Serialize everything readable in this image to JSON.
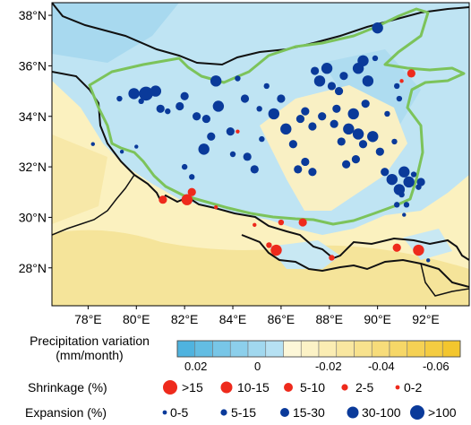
{
  "map": {
    "lat_labels": [
      "38°N",
      "36°N",
      "34°N",
      "32°N",
      "30°N",
      "28°N"
    ],
    "lon_labels": [
      "78°E",
      "80°E",
      "82°E",
      "84°E",
      "86°E",
      "88°E",
      "90°E",
      "92°E"
    ],
    "lat_range": [
      26.5,
      38.5
    ],
    "lon_range": [
      76.5,
      93.8
    ],
    "colors": {
      "blue_field": "#bfe4f3",
      "blue_deep": "#9fd3ec",
      "yellow_field": "#fbf1bf",
      "yellow_deep": "#f5e49a",
      "border_line": "#111111",
      "plateau_outline": "#7cc35a",
      "expansion_dot": "#0a3a9a",
      "shrinkage_dot": "#ee2a1c"
    },
    "lakes": {
      "expansion": [
        [
          78.2,
          32.9,
          1
        ],
        [
          79.9,
          34.9,
          4
        ],
        [
          80.2,
          34.6,
          2
        ],
        [
          80.4,
          34.9,
          5
        ],
        [
          80.8,
          35.0,
          4
        ],
        [
          81.0,
          34.3,
          3
        ],
        [
          81.3,
          34.2,
          2
        ],
        [
          81.8,
          34.4,
          3
        ],
        [
          82.0,
          34.8,
          3
        ],
        [
          82.5,
          34.0,
          3
        ],
        [
          82.9,
          33.9,
          3
        ],
        [
          83.3,
          35.4,
          4
        ],
        [
          83.4,
          34.4,
          4
        ],
        [
          83.1,
          33.2,
          3
        ],
        [
          82.8,
          32.7,
          4
        ],
        [
          82.0,
          32.0,
          2
        ],
        [
          83.9,
          33.4,
          3
        ],
        [
          84.0,
          32.5,
          2
        ],
        [
          84.5,
          34.7,
          3
        ],
        [
          84.6,
          32.4,
          3
        ],
        [
          84.9,
          31.9,
          3
        ],
        [
          85.2,
          33.1,
          2
        ],
        [
          85.7,
          34.1,
          4
        ],
        [
          86.0,
          34.7,
          3
        ],
        [
          86.2,
          33.5,
          4
        ],
        [
          86.5,
          32.9,
          3
        ],
        [
          86.8,
          33.9,
          3
        ],
        [
          87.0,
          34.2,
          3
        ],
        [
          87.3,
          33.6,
          3
        ],
        [
          87.0,
          32.2,
          3
        ],
        [
          86.7,
          31.9,
          3
        ],
        [
          87.3,
          31.8,
          3
        ],
        [
          87.6,
          35.4,
          4
        ],
        [
          87.9,
          35.9,
          4
        ],
        [
          87.4,
          35.8,
          3
        ],
        [
          88.1,
          35.2,
          3
        ],
        [
          88.4,
          35.0,
          3
        ],
        [
          87.7,
          34.0,
          3
        ],
        [
          88.2,
          33.7,
          3
        ],
        [
          88.5,
          33.0,
          3
        ],
        [
          88.8,
          33.5,
          4
        ],
        [
          89.0,
          34.1,
          4
        ],
        [
          89.2,
          33.3,
          4
        ],
        [
          89.4,
          32.9,
          3
        ],
        [
          89.1,
          32.3,
          3
        ],
        [
          88.7,
          32.1,
          3
        ],
        [
          89.5,
          34.5,
          3
        ],
        [
          89.2,
          35.9,
          4
        ],
        [
          89.4,
          36.2,
          4
        ],
        [
          89.6,
          35.4,
          4
        ],
        [
          89.9,
          36.3,
          2
        ],
        [
          90.0,
          37.5,
          4
        ],
        [
          89.8,
          33.2,
          4
        ],
        [
          90.1,
          32.6,
          3
        ],
        [
          90.4,
          34.1,
          2
        ],
        [
          90.7,
          33.0,
          2
        ],
        [
          90.9,
          34.7,
          2
        ],
        [
          90.8,
          35.2,
          2
        ],
        [
          90.3,
          31.8,
          3
        ],
        [
          90.6,
          31.5,
          4
        ],
        [
          90.9,
          31.1,
          4
        ],
        [
          91.1,
          31.8,
          4
        ],
        [
          91.3,
          31.4,
          4
        ],
        [
          91.5,
          31.7,
          2
        ],
        [
          91.7,
          31.2,
          2
        ],
        [
          91.0,
          30.9,
          2
        ],
        [
          91.2,
          30.5,
          2
        ],
        [
          90.8,
          30.5,
          2
        ],
        [
          91.8,
          31.4,
          3
        ],
        [
          91.1,
          30.1,
          1
        ],
        [
          92.1,
          28.3,
          1
        ],
        [
          80.0,
          32.8,
          1
        ],
        [
          79.4,
          32.6,
          1
        ],
        [
          79.3,
          34.7,
          2
        ],
        [
          85.4,
          35.2,
          2
        ],
        [
          85.1,
          34.3,
          2
        ],
        [
          84.2,
          35.5,
          2
        ],
        [
          88.6,
          35.6,
          3
        ],
        [
          88.3,
          34.3,
          3
        ],
        [
          82.3,
          31.6,
          2
        ]
      ],
      "shrinkage": [
        [
          81.1,
          30.7,
          3
        ],
        [
          82.1,
          30.7,
          4
        ],
        [
          82.3,
          31.0,
          3
        ],
        [
          84.2,
          33.4,
          1
        ],
        [
          85.5,
          28.9,
          2
        ],
        [
          85.8,
          28.7,
          4
        ],
        [
          86.0,
          29.8,
          2
        ],
        [
          86.9,
          29.8,
          3
        ],
        [
          88.1,
          28.4,
          2
        ],
        [
          90.8,
          28.8,
          3
        ],
        [
          91.7,
          28.7,
          4
        ],
        [
          91.4,
          35.7,
          3
        ],
        [
          91.0,
          35.4,
          1
        ],
        [
          84.9,
          29.7,
          1
        ],
        [
          83.3,
          30.4,
          1
        ]
      ]
    }
  },
  "legend": {
    "precip_title_line1": "Precipitation variation",
    "precip_title_line2": "(mm/month)",
    "colorbar_ticks": [
      "0.02",
      "0",
      "-0.02",
      "-0.04",
      "-0.06"
    ],
    "shrink_label": "Shrinkage (%)",
    "shrink_items": [
      ">15",
      "10-15",
      "5-10",
      "2-5",
      "0-2"
    ],
    "expand_label": "Expansion (%)",
    "expand_items": [
      "0-5",
      "5-15",
      "15-30",
      "30-100",
      ">100"
    ]
  }
}
